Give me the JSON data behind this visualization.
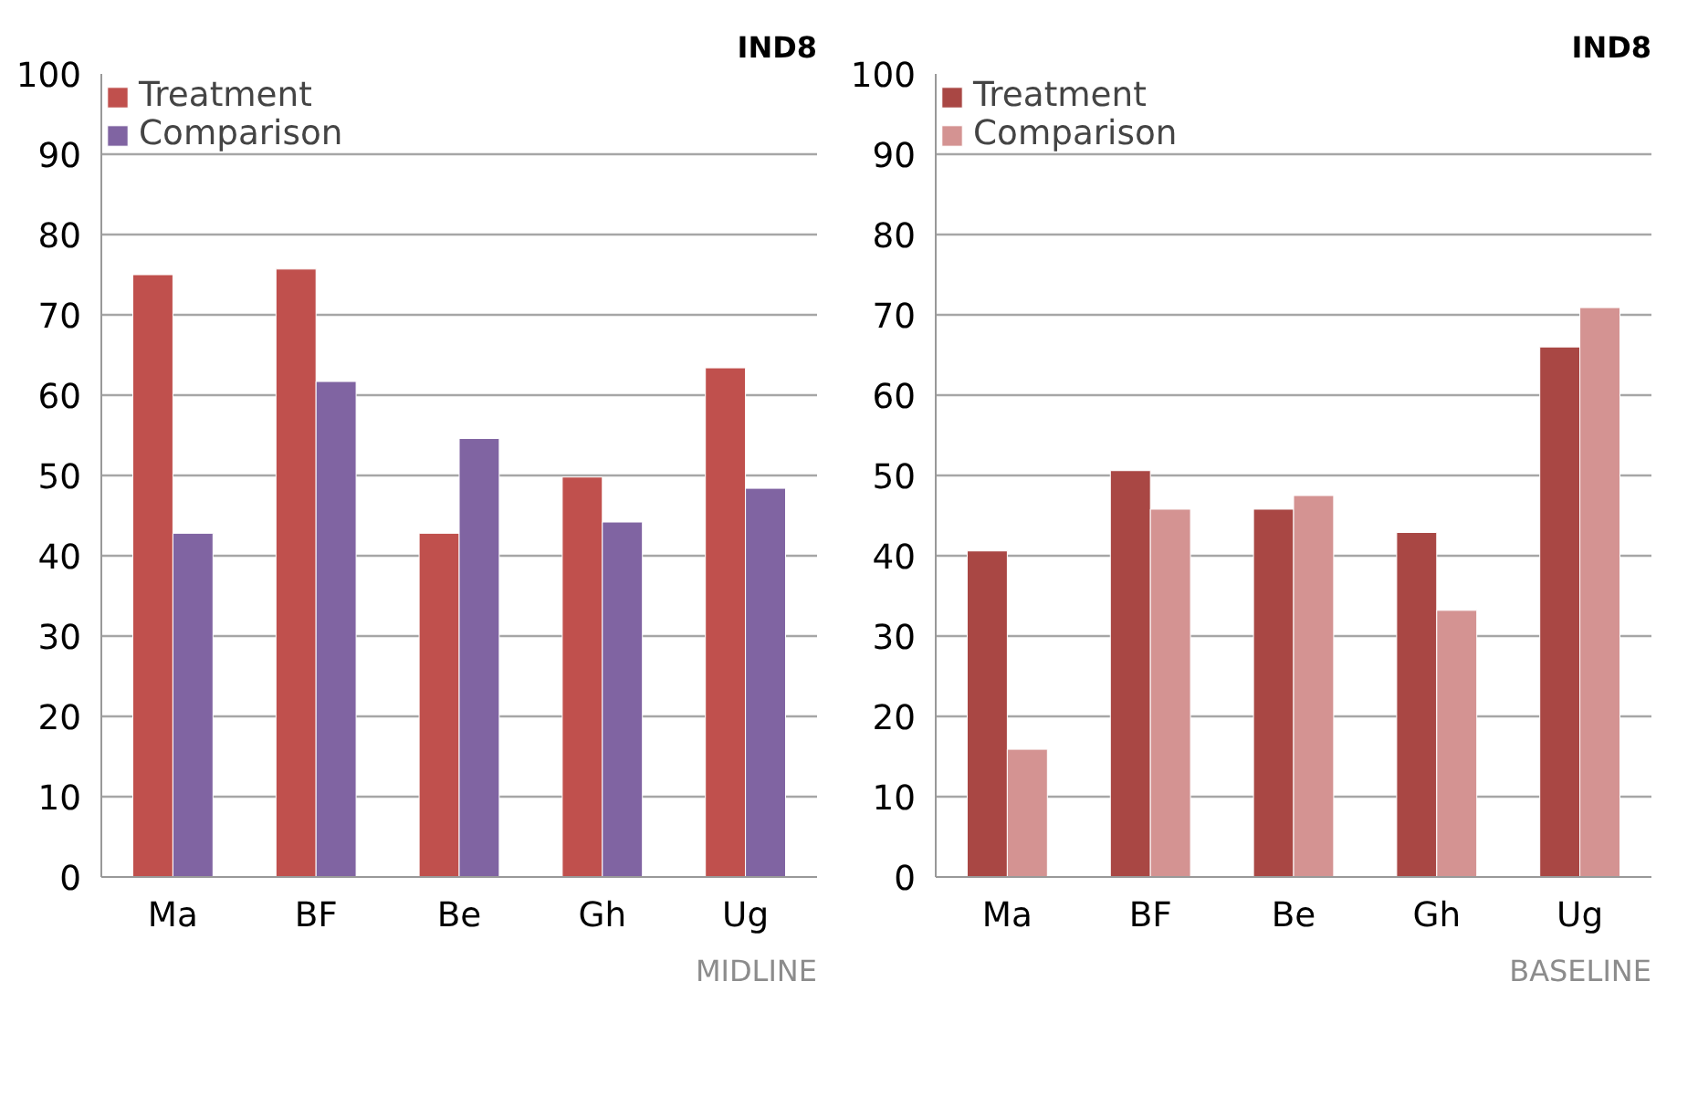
{
  "chart_data": [
    {
      "type": "bar",
      "title": "IND8",
      "categories": [
        "Ma",
        "BF",
        "Be",
        "Gh",
        "Ug"
      ],
      "series": [
        {
          "name": "Treatment",
          "color": "#c0504d",
          "values": [
            75,
            75.7,
            42.8,
            49.8,
            63.4
          ]
        },
        {
          "name": "Comparison",
          "color": "#8064a2",
          "values": [
            42.8,
            61.7,
            54.6,
            44.2,
            48.4
          ]
        }
      ],
      "ylim": [
        0,
        100
      ],
      "yticks": [
        0,
        10,
        20,
        30,
        40,
        50,
        60,
        70,
        80,
        90,
        100
      ],
      "grid": "y",
      "legend": "top left",
      "annotations": [
        "MIDLINE"
      ]
    },
    {
      "type": "bar",
      "title": "IND8",
      "categories": [
        "Ma",
        "BF",
        "Be",
        "Gh",
        "Ug"
      ],
      "series": [
        {
          "name": "Treatment",
          "color": "#a94744",
          "values": [
            40.6,
            50.6,
            45.8,
            42.9,
            66.0
          ]
        },
        {
          "name": "Comparison",
          "color": "#d49392",
          "values": [
            15.9,
            45.8,
            47.5,
            33.2,
            70.9
          ]
        }
      ],
      "ylim": [
        0,
        100
      ],
      "yticks": [
        0,
        10,
        20,
        30,
        40,
        50,
        60,
        70,
        80,
        90,
        100
      ],
      "grid": "y",
      "legend": "top left",
      "annotations": [
        "BASELINE"
      ]
    }
  ]
}
